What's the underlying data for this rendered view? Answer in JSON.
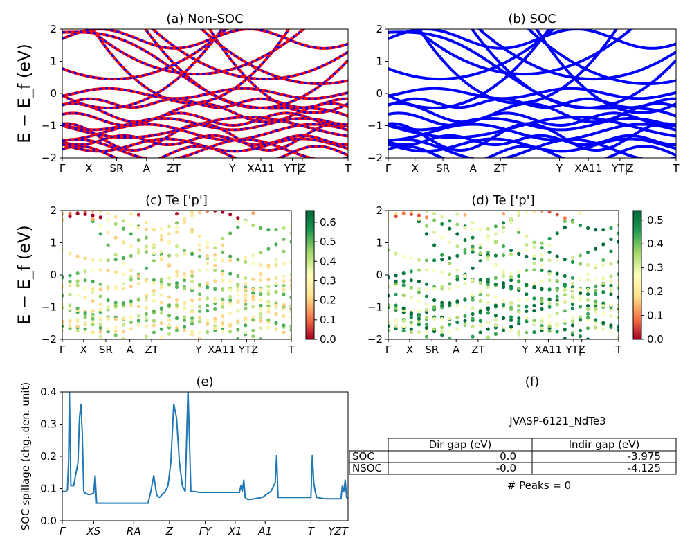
{
  "chart_data": [
    {
      "id": "a",
      "type": "line",
      "title": "(a) Non-SOC",
      "ylabel": "E − E_f (eV)",
      "ylim": [
        -2,
        2
      ],
      "yticks": [
        "2",
        "1",
        "0",
        "−1",
        "−2"
      ],
      "kpath_labels": [
        "Γ",
        "X",
        "SR",
        "A",
        "ZT",
        "Y",
        "XA11",
        "YT|",
        "Z",
        "T"
      ],
      "series": [
        {
          "color": "#ff0000"
        },
        {
          "color": "#0000ff"
        }
      ]
    },
    {
      "id": "b",
      "type": "line",
      "title": "(b) SOC",
      "ylim": [
        -2,
        2
      ],
      "yticks": [
        "2",
        "1",
        "0",
        "−1",
        "−2"
      ],
      "kpath_labels": [
        "Γ",
        "X",
        "SR",
        "A",
        "ZT",
        "Y",
        "XA11",
        "YT|",
        "Z",
        "T"
      ],
      "series": [
        {
          "color": "#0000ff"
        }
      ]
    },
    {
      "id": "c",
      "type": "scatter",
      "title": "(c)  Te ['p']",
      "ylabel": "E − E_f (eV)",
      "ylim": [
        -2,
        2
      ],
      "yticks": [
        "2",
        "1",
        "0",
        "−1",
        "−2"
      ],
      "kpath_labels": [
        "Γ",
        "X",
        "SR",
        "A",
        "ZT",
        "Y",
        "XA11",
        "YT|",
        "Z",
        "T"
      ],
      "colorbar": {
        "min": 0.0,
        "max": 0.66,
        "ticks": [
          "0.6",
          "0.5",
          "0.4",
          "0.3",
          "0.2",
          "0.1",
          "0.0"
        ]
      }
    },
    {
      "id": "d",
      "type": "scatter",
      "title": "(d) Te ['p']",
      "ylim": [
        -2,
        2
      ],
      "yticks": [
        "2",
        "1",
        "0",
        "−1",
        "−2"
      ],
      "kpath_labels": [
        "Γ",
        "X",
        "SR",
        "A",
        "ZT",
        "Y",
        "XA11",
        "YT|",
        "Z",
        "T"
      ],
      "colorbar": {
        "min": 0.0,
        "max": 0.54,
        "ticks": [
          "0.5",
          "0.4",
          "0.3",
          "0.2",
          "0.1",
          "0.0"
        ]
      }
    },
    {
      "id": "e",
      "type": "line",
      "title": "(e)",
      "ylabel": "SOC spillage (chg. den. unit)",
      "ylim": [
        0,
        0.44
      ],
      "yticks": [
        "0.4",
        "0.3",
        "0.2",
        "0.1",
        "0.0"
      ],
      "xticks": [
        "Γ",
        "XS",
        "RA",
        "Z",
        "ΓY",
        "X1",
        "A1",
        "T",
        "YZT"
      ],
      "series": [
        {
          "color": "#1f77b4",
          "x": [
            0,
            0.012,
            0.018,
            0.022,
            0.025,
            0.03,
            0.04,
            0.055,
            0.06,
            0.065,
            0.07,
            0.075,
            0.08,
            0.09,
            0.1,
            0.11,
            0.115,
            0.12,
            0.13,
            0.14,
            0.15,
            0.16,
            0.2,
            0.25,
            0.3,
            0.3,
            0.31,
            0.32,
            0.33,
            0.335,
            0.34,
            0.345,
            0.35,
            0.36,
            0.37,
            0.38,
            0.39,
            0.4,
            0.41,
            0.42,
            0.43,
            0.44,
            0.45,
            0.46,
            0.48,
            0.5,
            0.54,
            0.56,
            0.58,
            0.6,
            0.6,
            0.62,
            0.625,
            0.63,
            0.635,
            0.64,
            0.645,
            0.65,
            0.66,
            0.7,
            0.73,
            0.745,
            0.75,
            0.755,
            0.76,
            0.8,
            0.85,
            0.87,
            0.875,
            0.88,
            0.885,
            0.89,
            0.92,
            0.96,
            0.975,
            0.98,
            0.985,
            0.99,
            0.995,
            1.0
          ],
          "y": [
            0.1,
            0.1,
            0.105,
            0.2,
            0.44,
            0.12,
            0.12,
            0.2,
            0.35,
            0.4,
            0.3,
            0.1,
            0.095,
            0.09,
            0.09,
            0.095,
            0.155,
            0.06,
            0.06,
            0.06,
            0.06,
            0.06,
            0.06,
            0.06,
            0.06,
            0.06,
            0.1,
            0.155,
            0.09,
            0.082,
            0.08,
            0.085,
            0.09,
            0.1,
            0.12,
            0.2,
            0.4,
            0.35,
            0.2,
            0.12,
            0.1,
            0.45,
            0.1,
            0.1,
            0.097,
            0.097,
            0.097,
            0.097,
            0.097,
            0.097,
            0.097,
            0.097,
            0.12,
            0.1,
            0.14,
            0.08,
            0.075,
            0.073,
            0.073,
            0.08,
            0.1,
            0.13,
            0.225,
            0.08,
            0.08,
            0.08,
            0.08,
            0.08,
            0.225,
            0.13,
            0.1,
            0.08,
            0.075,
            0.075,
            0.075,
            0.12,
            0.1,
            0.14,
            0.08,
            0.075
          ]
        }
      ]
    }
  ],
  "panel_f": {
    "title": "(f)",
    "material": "JVASP-6121_NdTe3",
    "table": {
      "headers": [
        "Dir gap (eV)",
        "Indir gap (eV)"
      ],
      "rows": [
        {
          "label": "SOC",
          "dir": "0.0",
          "indir": "-3.975"
        },
        {
          "label": "NSOC",
          "dir": "-0.0",
          "indir": "-4.125"
        }
      ]
    },
    "peaks": "# Peaks = 0"
  }
}
